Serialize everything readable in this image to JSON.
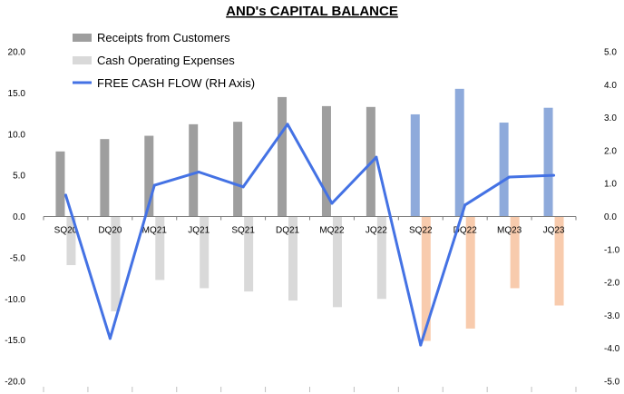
{
  "chart_data": {
    "type": "bar",
    "title": "AND's CAPITAL BALANCE",
    "categories": [
      "SQ20",
      "DQ20",
      "MQ21",
      "JQ21",
      "SQ21",
      "DQ21",
      "MQ22",
      "JQ22",
      "SQ22",
      "DQ22",
      "MQ23",
      "JQ23"
    ],
    "left_axis": {
      "ylim": [
        -20,
        20
      ],
      "ticks": [
        "20.0",
        "15.0",
        "10.0",
        "5.0",
        "0.0",
        "-5.0",
        "-10.0",
        "-15.0",
        "-20.0"
      ]
    },
    "right_axis": {
      "ylim": [
        -5,
        5
      ],
      "ticks": [
        "5.0",
        "4.0",
        "3.0",
        "2.0",
        "1.0",
        "0.0",
        "-1.0",
        "-2.0",
        "-3.0",
        "-4.0",
        "-5.0"
      ]
    },
    "series": [
      {
        "name": "Receipts from Customers",
        "kind": "bar",
        "axis": "left",
        "values": [
          7.9,
          9.4,
          9.8,
          11.2,
          11.5,
          14.5,
          13.4,
          13.3,
          12.4,
          15.5,
          11.4,
          13.2
        ],
        "colors": [
          "#9e9e9e",
          "#9e9e9e",
          "#9e9e9e",
          "#9e9e9e",
          "#9e9e9e",
          "#9e9e9e",
          "#9e9e9e",
          "#9e9e9e",
          "#8eaadb",
          "#8eaadb",
          "#8eaadb",
          "#8eaadb"
        ]
      },
      {
        "name": "Cash Operating Expenses",
        "kind": "bar",
        "axis": "left",
        "values": [
          -5.9,
          -11.5,
          -7.7,
          -8.7,
          -9.1,
          -10.2,
          -11.0,
          -10.0,
          -15.1,
          -13.6,
          -8.7,
          -10.8
        ],
        "colors": [
          "#d9d9d9",
          "#d9d9d9",
          "#d9d9d9",
          "#d9d9d9",
          "#d9d9d9",
          "#d9d9d9",
          "#d9d9d9",
          "#d9d9d9",
          "#f8cbad",
          "#f8cbad",
          "#f8cbad",
          "#f8cbad"
        ]
      },
      {
        "name": "FREE CASH FLOW (RH Axis)",
        "kind": "line",
        "axis": "right",
        "color": "#4472e4",
        "values": [
          0.65,
          -3.7,
          0.95,
          1.35,
          0.9,
          2.8,
          0.4,
          1.8,
          -3.9,
          0.35,
          1.2,
          1.25
        ]
      }
    ],
    "legend_position": "top-left",
    "grid": false
  }
}
